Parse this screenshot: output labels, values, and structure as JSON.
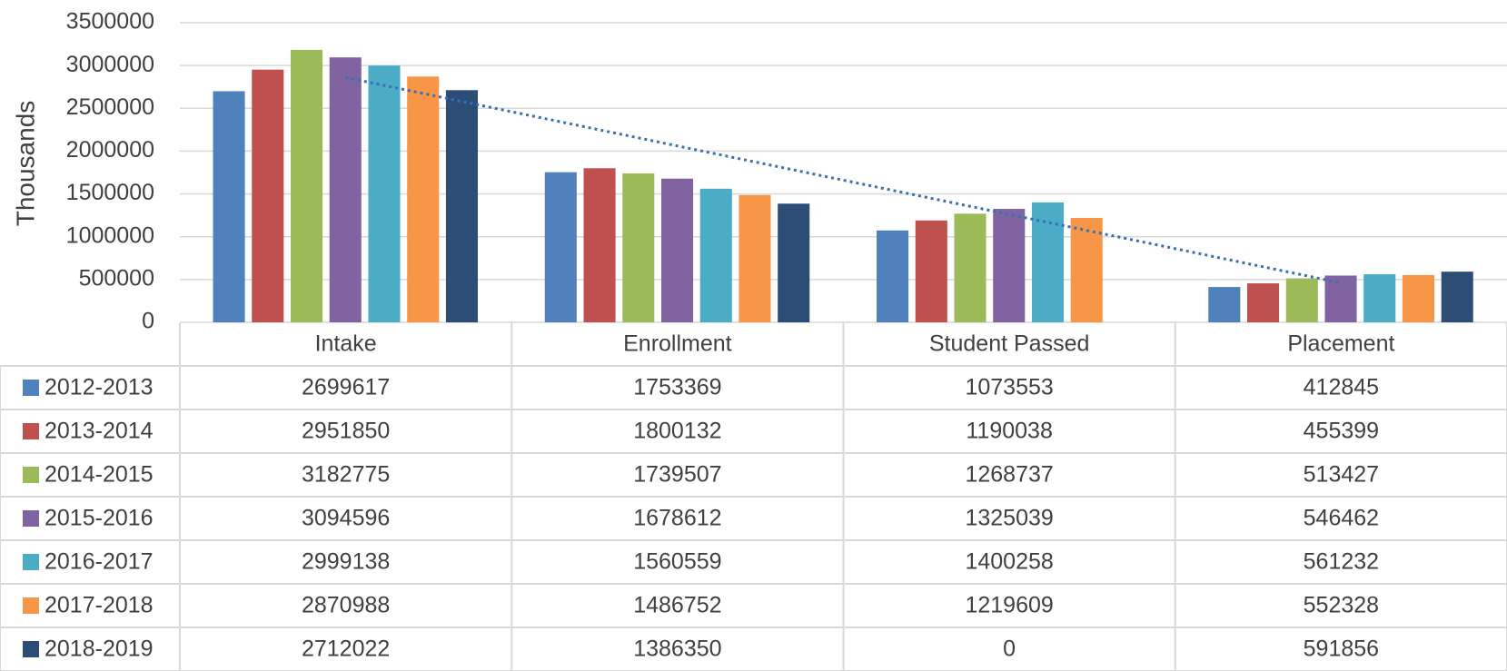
{
  "chart_data": {
    "type": "bar",
    "y_label": "Thousands",
    "categories": [
      "Intake",
      "Enrollment",
      "Student Passed",
      "Placement"
    ],
    "series": [
      {
        "name": "2012-2013",
        "color": "#4f81bd",
        "values": [
          2699617,
          1753369,
          1073553,
          412845
        ]
      },
      {
        "name": "2013-2014",
        "color": "#c0504d",
        "values": [
          2951850,
          1800132,
          1190038,
          455399
        ]
      },
      {
        "name": "2014-2015",
        "color": "#9bbb59",
        "values": [
          3182775,
          1739507,
          1268737,
          513427
        ]
      },
      {
        "name": "2015-2016",
        "color": "#8064a2",
        "values": [
          3094596,
          1678612,
          1325039,
          546462
        ]
      },
      {
        "name": "2016-2017",
        "color": "#4bacc6",
        "values": [
          2999138,
          1560559,
          1400258,
          561232
        ]
      },
      {
        "name": "2017-2018",
        "color": "#f79646",
        "values": [
          2870988,
          1486752,
          1219609,
          552328
        ]
      },
      {
        "name": "2018-2019",
        "color": "#2c4d75",
        "values": [
          2712022,
          1386350,
          0,
          591856
        ]
      }
    ],
    "ylim": [
      0,
      3500000
    ],
    "yticks": [
      0,
      500000,
      1000000,
      1500000,
      2000000,
      2500000,
      3000000,
      3500000
    ],
    "grid": true,
    "data_table": true,
    "trendline": {
      "series": "2015-2016",
      "kind": "linear",
      "color": "#3a6fb7",
      "style": "dotted"
    }
  }
}
